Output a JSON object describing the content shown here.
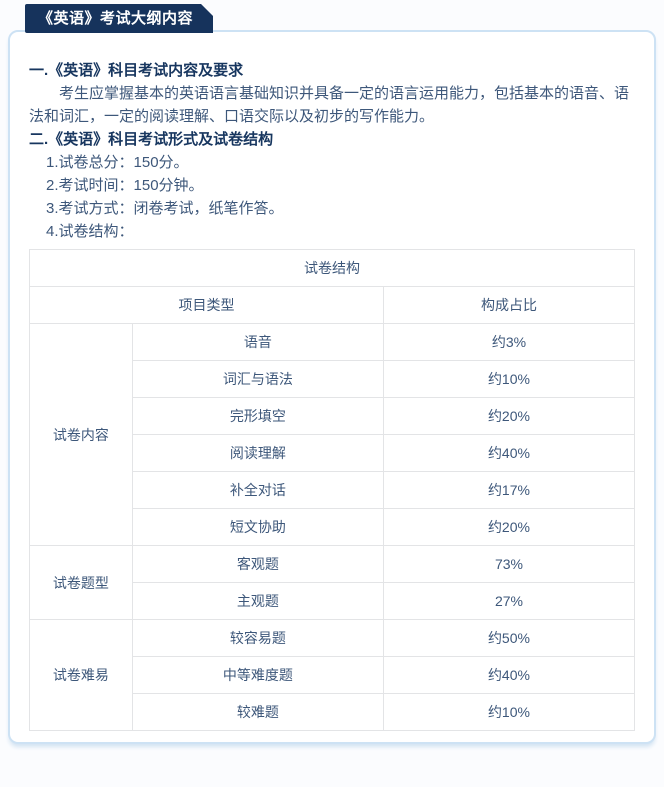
{
  "badge": {
    "label": "《英语》考试大纲内容"
  },
  "sections": [
    {
      "heading": "一.《英语》科目考试内容及要求",
      "paragraph": "考生应掌握基本的英语语言基础知识并具备一定的语言运用能力，包括基本的语音、语法和词汇，一定的阅读理解、口语交际以及初步的写作能力。"
    },
    {
      "heading": "二.《英语》科目考试形式及试卷结构",
      "items": [
        "1.试卷总分：150分。",
        "2.考试时间：150分钟。",
        "3.考试方式：闭卷考试，纸笔作答。",
        "4.试卷结构："
      ]
    }
  ],
  "table": {
    "title": "试卷结构",
    "col_headers": [
      "项目类型",
      "构成占比"
    ],
    "groups": [
      {
        "label": "试卷内容",
        "rows": [
          [
            "语音",
            "约3%"
          ],
          [
            "词汇与语法",
            "约10%"
          ],
          [
            "完形填空",
            "约20%"
          ],
          [
            "阅读理解",
            "约40%"
          ],
          [
            "补全对话",
            "约17%"
          ],
          [
            "短文协助",
            "约20%"
          ]
        ]
      },
      {
        "label": "试卷题型",
        "rows": [
          [
            "客观题",
            "73%"
          ],
          [
            "主观题",
            "27%"
          ]
        ]
      },
      {
        "label": "试卷难易",
        "rows": [
          [
            "较容易题",
            "约50%"
          ],
          [
            "中等难度题",
            "约40%"
          ],
          [
            "较难题",
            "约10%"
          ]
        ]
      }
    ]
  },
  "colors": {
    "badge_bg": "#16335c",
    "badge_text": "#ffffff",
    "heading_text": "#17365f",
    "body_text": "#3d577a",
    "card_border": "#cde2f4",
    "card_bg": "#ffffff",
    "table_border": "#e3e4e6"
  }
}
